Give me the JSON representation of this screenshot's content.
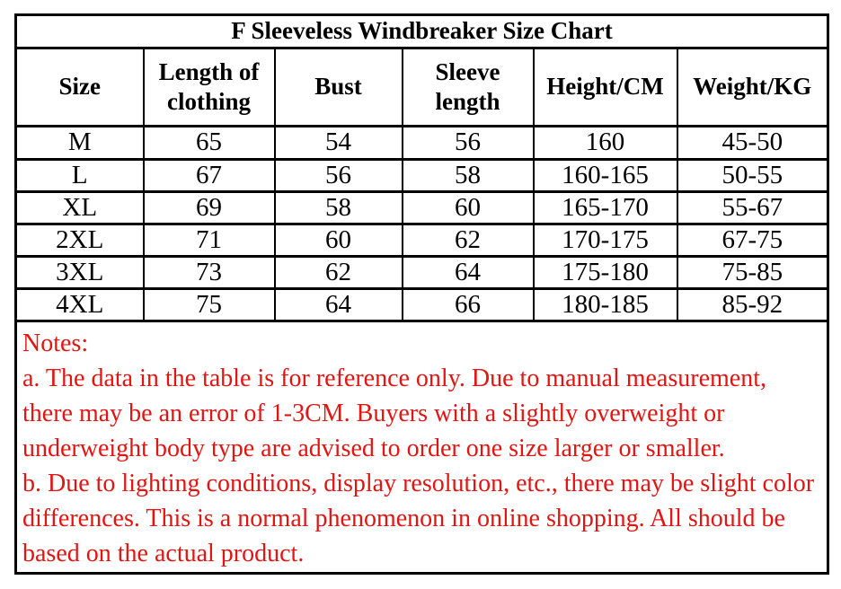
{
  "table": {
    "title": "F Sleeveless Windbreaker Size Chart",
    "headers": [
      "Size",
      "Length of clothing",
      "Bust",
      "Sleeve length",
      "Height/CM",
      "Weight/KG"
    ],
    "rows": [
      [
        "M",
        "65",
        "54",
        "56",
        "160",
        "45-50"
      ],
      [
        "L",
        "67",
        "56",
        "58",
        "160-165",
        "50-55"
      ],
      [
        "XL",
        "69",
        "58",
        "60",
        "165-170",
        "55-67"
      ],
      [
        "2XL",
        "71",
        "60",
        "62",
        "170-175",
        "67-75"
      ],
      [
        "3XL",
        "73",
        "62",
        "64",
        "175-180",
        "75-85"
      ],
      [
        "4XL",
        "75",
        "64",
        "66",
        "180-185",
        "85-92"
      ]
    ]
  },
  "notes": {
    "heading": "Notes:",
    "items": [
      "a. The data in the table is for reference only. Due to manual measurement, there may be an error of 1-3CM. Buyers with a slightly overweight or underweight body type are advised to order one size larger or smaller.",
      "b. Due to lighting conditions, display resolution, etc., there may be slight color differences. This is a normal phenomenon in online shopping. All should be based on the actual product."
    ]
  },
  "colors": {
    "notes_red": "#e31411",
    "text": "#000000",
    "border": "#000000",
    "background": "#ffffff"
  }
}
